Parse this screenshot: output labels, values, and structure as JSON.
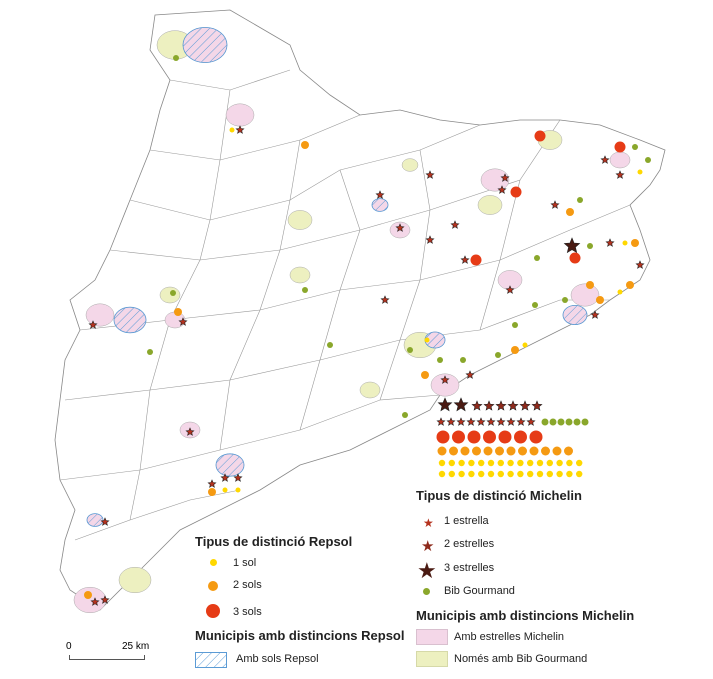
{
  "legend_repsol": {
    "title": "Tipus de distinció Repsol",
    "items": [
      {
        "label": "1 sol",
        "color": "#FFD800"
      },
      {
        "label": "2 sols",
        "color": "#F59A12"
      },
      {
        "label": "3 sols",
        "color": "#E63B16"
      }
    ],
    "municipis_title": "Municipis amb distincions Repsol",
    "municipis_items": [
      {
        "label": "Amb sols Repsol",
        "pattern": "blue-hatch",
        "color": "#5B9BD5"
      }
    ]
  },
  "legend_michelin": {
    "title": "Tipus de distinció Michelin",
    "items": [
      {
        "label": "1 estrella",
        "color": "#B5321E",
        "icon": "star-small"
      },
      {
        "label": "2 estrelles",
        "color": "#8E2A1C",
        "icon": "star-medium"
      },
      {
        "label": "3 estrelles",
        "color": "#4A1A12",
        "icon": "star-large"
      },
      {
        "label": "Bib Gourmand",
        "color": "#8AA72B",
        "icon": "dot"
      }
    ],
    "municipis_title": "Municipis amb distincions Michelin",
    "municipis_items": [
      {
        "label": "Amb estrelles Michelin",
        "color": "#F4D7E8"
      },
      {
        "label": "Només amb Bib Gourmand",
        "color": "#EDF0C0"
      }
    ]
  },
  "scale_bar": {
    "start": "0",
    "end": "25 km"
  },
  "barcelona_cluster": {
    "three_stars": 2,
    "two_stars": 6,
    "one_star": 10,
    "bib_gourmand": 6,
    "three_sols": 7,
    "two_sols": 12,
    "one_sol": 30
  }
}
